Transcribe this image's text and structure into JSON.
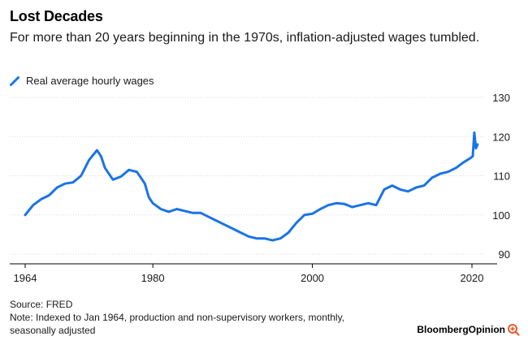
{
  "header": {
    "title": "Lost Decades",
    "subtitle": "For more than 20 years beginning in the 1970s, inflation-adjusted wages tumbled."
  },
  "legend": {
    "label": "Real average hourly wages",
    "color": "#1a73e8"
  },
  "footer": {
    "source": "Source: FRED",
    "note_line1": "Note: Indexed to Jan 1964, production and non-supervisory workers, monthly,",
    "note_line2": "seasonally adjusted"
  },
  "brand": {
    "text": "BloombergOpinion",
    "accent_color": "#e85a2e",
    "icon": "magnifier-plus-icon"
  },
  "chart_data": {
    "type": "line",
    "title": "Lost Decades",
    "subtitle": "For more than 20 years beginning in the 1970s, inflation-adjusted wages tumbled.",
    "xlabel": "",
    "ylabel": "",
    "x_ticks": [
      1964,
      1980,
      2000,
      2020
    ],
    "y_ticks": [
      90,
      100,
      110,
      120,
      130
    ],
    "xlim": [
      1963,
      2022
    ],
    "ylim": [
      87,
      130
    ],
    "grid": "horizontal",
    "y_axis_position": "right",
    "legend_position": "top-left",
    "series": [
      {
        "name": "Real average hourly wages",
        "color": "#1a73e8",
        "points": [
          [
            1964.0,
            100.0
          ],
          [
            1965.0,
            102.5
          ],
          [
            1966.0,
            104.0
          ],
          [
            1967.0,
            105.0
          ],
          [
            1968.0,
            107.0
          ],
          [
            1969.0,
            108.0
          ],
          [
            1970.0,
            108.3
          ],
          [
            1971.0,
            110.0
          ],
          [
            1972.0,
            114.0
          ],
          [
            1973.0,
            116.5
          ],
          [
            1973.5,
            115.0
          ],
          [
            1974.0,
            112.0
          ],
          [
            1975.0,
            109.0
          ],
          [
            1976.0,
            109.8
          ],
          [
            1977.0,
            111.5
          ],
          [
            1978.0,
            111.0
          ],
          [
            1979.0,
            108.0
          ],
          [
            1979.5,
            104.5
          ],
          [
            1980.0,
            103.0
          ],
          [
            1981.0,
            101.5
          ],
          [
            1982.0,
            100.8
          ],
          [
            1983.0,
            101.5
          ],
          [
            1984.0,
            101.0
          ],
          [
            1985.0,
            100.5
          ],
          [
            1986.0,
            100.5
          ],
          [
            1987.0,
            99.5
          ],
          [
            1988.0,
            98.5
          ],
          [
            1989.0,
            97.5
          ],
          [
            1990.0,
            96.5
          ],
          [
            1991.0,
            95.5
          ],
          [
            1992.0,
            94.5
          ],
          [
            1993.0,
            94.0
          ],
          [
            1994.0,
            94.0
          ],
          [
            1995.0,
            93.5
          ],
          [
            1996.0,
            94.0
          ],
          [
            1997.0,
            95.5
          ],
          [
            1998.0,
            98.0
          ],
          [
            1999.0,
            100.0
          ],
          [
            2000.0,
            100.3
          ],
          [
            2001.0,
            101.5
          ],
          [
            2002.0,
            102.5
          ],
          [
            2003.0,
            103.0
          ],
          [
            2004.0,
            102.8
          ],
          [
            2005.0,
            102.0
          ],
          [
            2006.0,
            102.5
          ],
          [
            2007.0,
            103.0
          ],
          [
            2008.0,
            102.5
          ],
          [
            2009.0,
            106.5
          ],
          [
            2010.0,
            107.5
          ],
          [
            2011.0,
            106.5
          ],
          [
            2012.0,
            106.0
          ],
          [
            2013.0,
            107.0
          ],
          [
            2014.0,
            107.5
          ],
          [
            2015.0,
            109.5
          ],
          [
            2016.0,
            110.5
          ],
          [
            2017.0,
            111.0
          ],
          [
            2018.0,
            112.0
          ],
          [
            2019.0,
            113.5
          ],
          [
            2019.8,
            114.5
          ],
          [
            2020.1,
            115.0
          ],
          [
            2020.3,
            121.0
          ],
          [
            2020.5,
            117.0
          ],
          [
            2020.7,
            118.0
          ]
        ]
      }
    ]
  }
}
